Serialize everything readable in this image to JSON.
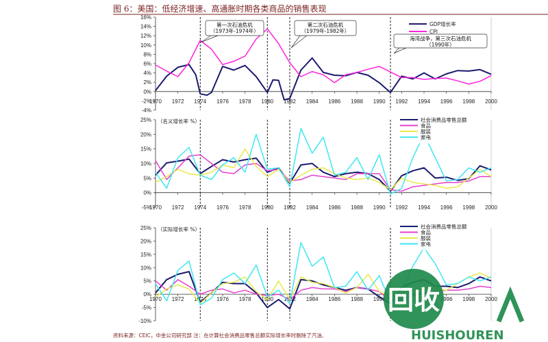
{
  "figure": {
    "title": "图 6：美国：低经济增速、高通胀时期各类商品的销售表现",
    "source": "资料来源：CEIC，中金公司研究部 注：在计算社会消费品零售总额实际增长率时剔除了汽油、",
    "watermark": {
      "text": "HUISHOUREN",
      "logo_chars": "回收"
    }
  },
  "chart_data": [
    {
      "type": "line",
      "x_ticks": [
        "1970",
        "1972",
        "1974",
        "1976",
        "1978",
        "1980",
        "1982",
        "1984",
        "1986",
        "1988",
        "1990",
        "1992",
        "1994",
        "1996",
        "1998",
        "2000"
      ],
      "y_ticks": [
        "16%",
        "14%",
        "12%",
        "10%",
        "8%",
        "6%",
        "4%",
        "2%",
        "0%",
        "-2%",
        "-4%"
      ],
      "xlim": [
        1970,
        2000
      ],
      "ylim": [
        -4,
        16
      ],
      "annotations": [
        {
          "text1": "第一次石油危机",
          "text2": "（1973年-1974年）"
        },
        {
          "text1": "第二次石油危机",
          "text2": "（1979年-1982年）"
        },
        {
          "text1": "海湾战争，第三次石油危机",
          "text2": "（1990年）"
        }
      ],
      "legend": "top-right",
      "series": [
        {
          "name": "GDP增长率",
          "color": "#1a1a6e",
          "x": [
            1970,
            1971,
            1972,
            1973,
            1973.6,
            1974,
            1974.6,
            1975,
            1976,
            1977,
            1978,
            1979,
            1980,
            1980.5,
            1981,
            1981.5,
            1982,
            1983,
            1984,
            1985,
            1986,
            1987,
            1988,
            1989,
            1990,
            1991,
            1992,
            1993,
            1994,
            1995,
            1996,
            1997,
            1998,
            1999,
            2000
          ],
          "y": [
            0.2,
            3.3,
            5.2,
            5.8,
            3.6,
            -0.5,
            -0.8,
            -0.2,
            5.4,
            4.6,
            5.6,
            3.2,
            -0.2,
            2.5,
            2.4,
            -1.8,
            -1.5,
            4.6,
            7.2,
            4.1,
            3.5,
            3.4,
            4.1,
            3.5,
            1.9,
            -0.2,
            3.3,
            2.7,
            4.0,
            2.7,
            3.8,
            4.5,
            4.4,
            4.7,
            3.7
          ]
        },
        {
          "name": "CPI",
          "color": "#ff22dd",
          "x": [
            1970,
            1971,
            1972,
            1973,
            1974,
            1975,
            1976,
            1977,
            1978,
            1979,
            1980,
            1981,
            1982,
            1983,
            1984,
            1985,
            1986,
            1987,
            1988,
            1989,
            1990,
            1991,
            1992,
            1993,
            1994,
            1995,
            1996,
            1997,
            1998,
            1999,
            2000
          ],
          "y": [
            5.7,
            4.4,
            3.2,
            6.2,
            11.0,
            9.1,
            5.8,
            6.5,
            7.6,
            11.3,
            13.5,
            10.3,
            6.2,
            3.2,
            4.3,
            3.6,
            1.9,
            3.6,
            4.1,
            4.8,
            5.4,
            4.2,
            3.0,
            3.0,
            2.6,
            2.8,
            2.9,
            2.3,
            1.6,
            2.2,
            3.4
          ]
        }
      ]
    },
    {
      "type": "line",
      "ylabel": "（名义增长率 %）",
      "x_ticks": [
        "1970",
        "1972",
        "1974",
        "1976",
        "1978",
        "1980",
        "1982",
        "1984",
        "1986",
        "1988",
        "1990",
        "1992",
        "1994",
        "1996",
        "1998",
        "2000"
      ],
      "y_ticks": [
        "25%",
        "20%",
        "15%",
        "10%",
        "5%",
        "0%",
        "-5%"
      ],
      "xlim": [
        1970,
        2000
      ],
      "ylim": [
        -5,
        25
      ],
      "legend": "top-right",
      "series": [
        {
          "name": "社会消费品零售总额",
          "color": "#1a1a6e",
          "x": [
            1970,
            1971,
            1972,
            1973,
            1974,
            1975,
            1976,
            1977,
            1978,
            1979,
            1980,
            1981,
            1982,
            1983,
            1984,
            1985,
            1986,
            1987,
            1988,
            1989,
            1990,
            1991,
            1992,
            1993,
            1994,
            1995,
            1996,
            1997,
            1998,
            1999,
            2000
          ],
          "y": [
            6.0,
            10.2,
            10.8,
            11.5,
            6.5,
            9.0,
            11.3,
            10.5,
            11.3,
            11.8,
            7.0,
            8.5,
            3.2,
            9.5,
            10.0,
            7.0,
            5.5,
            6.5,
            7.0,
            6.5,
            4.5,
            0.5,
            5.8,
            7.5,
            8.5,
            5.0,
            5.3,
            4.2,
            4.8,
            9.2,
            7.8
          ]
        },
        {
          "name": "食品",
          "color": "#e63fcf",
          "x": [
            1970,
            1971,
            1972,
            1973,
            1974,
            1975,
            1976,
            1977,
            1978,
            1979,
            1980,
            1981,
            1982,
            1983,
            1984,
            1985,
            1986,
            1987,
            1988,
            1989,
            1990,
            1991,
            1992,
            1993,
            1994,
            1995,
            1996,
            1997,
            1998,
            1999,
            2000
          ],
          "y": [
            11.0,
            4.5,
            8.5,
            12.5,
            13.0,
            10.0,
            7.0,
            6.5,
            9.5,
            10.0,
            7.5,
            8.0,
            4.0,
            4.5,
            6.0,
            5.5,
            5.0,
            4.5,
            6.5,
            6.5,
            6.5,
            1.0,
            0.5,
            2.0,
            2.5,
            3.0,
            3.5,
            3.5,
            4.0,
            5.5,
            5.5
          ]
        },
        {
          "name": "服装",
          "color": "#e9e94a",
          "x": [
            1970,
            1971,
            1972,
            1973,
            1974,
            1975,
            1976,
            1977,
            1978,
            1979,
            1980,
            1981,
            1982,
            1983,
            1984,
            1985,
            1986,
            1987,
            1988,
            1989,
            1990,
            1991,
            1992,
            1993,
            1994,
            1995,
            1996,
            1997,
            1998,
            1999,
            2000
          ],
          "y": [
            3.5,
            5.5,
            8.0,
            6.5,
            6.0,
            7.0,
            9.5,
            8.5,
            15.0,
            9.0,
            5.5,
            8.0,
            3.5,
            6.0,
            8.0,
            8.5,
            6.5,
            5.0,
            4.5,
            5.0,
            3.5,
            1.0,
            5.0,
            3.5,
            3.0,
            2.5,
            1.5,
            2.0,
            5.0,
            8.0,
            5.5
          ]
        },
        {
          "name": "家电",
          "color": "#3ee6f2",
          "x": [
            1970,
            1971,
            1972,
            1973,
            1974,
            1975,
            1976,
            1977,
            1978,
            1979,
            1980,
            1981,
            1982,
            1983,
            1984,
            1985,
            1986,
            1987,
            1988,
            1989,
            1990,
            1991,
            1992,
            1993,
            1994,
            1995,
            1996,
            1997,
            1998,
            1999,
            2000
          ],
          "y": [
            7.0,
            1.5,
            12.0,
            15.5,
            6.0,
            4.5,
            9.5,
            12.0,
            7.0,
            20.0,
            8.0,
            8.5,
            2.0,
            22.0,
            13.5,
            19.0,
            6.0,
            7.0,
            12.0,
            4.5,
            13.0,
            -0.5,
            1.5,
            12.0,
            20.0,
            12.0,
            4.0,
            4.5,
            8.5,
            7.0,
            8.5
          ]
        }
      ]
    },
    {
      "type": "line",
      "ylabel": "（实际增长率 %）",
      "x_ticks": [
        "1970",
        "1972",
        "1974",
        "1976",
        "1978",
        "1980",
        "1982",
        "1984",
        "1986",
        "1988",
        "1990",
        "1992",
        "1994",
        "1996",
        "1998",
        "2000"
      ],
      "y_ticks": [
        "25%",
        "20%",
        "15%",
        "10%",
        "5%",
        "0%",
        "-5%",
        "-10%"
      ],
      "xlim": [
        1970,
        2000
      ],
      "ylim": [
        -10,
        25
      ],
      "legend": "top-right",
      "series": [
        {
          "name": "社会消费品零售总额",
          "color": "#1a1a6e",
          "x": [
            1970,
            1971,
            1972,
            1973,
            1974,
            1975,
            1976,
            1977,
            1978,
            1979,
            1980,
            1981,
            1982,
            1983,
            1984,
            1985,
            1986,
            1987,
            1988,
            1989,
            1990,
            1991,
            1992,
            1993,
            1994,
            1995,
            1996,
            1997,
            1998,
            1999,
            2000
          ],
          "y": [
            0.5,
            5.5,
            7.5,
            8.5,
            -3.0,
            0.5,
            4.5,
            4.0,
            4.0,
            0.5,
            -5.0,
            -2.0,
            -5.5,
            5.5,
            5.0,
            3.5,
            2.5,
            1.5,
            2.5,
            2.0,
            -1.0,
            -3.5,
            2.5,
            4.5,
            5.5,
            3.0,
            3.0,
            2.5,
            4.0,
            6.5,
            5.0
          ]
        },
        {
          "name": "食品",
          "color": "#e63fcf",
          "x": [
            1970,
            1971,
            1972,
            1973,
            1974,
            1975,
            1976,
            1977,
            1978,
            1979,
            1980,
            1981,
            1982,
            1983,
            1984,
            1985,
            1986,
            1987,
            1988,
            1989,
            1990,
            1991,
            1992,
            1993,
            1994,
            1995,
            1996,
            1997,
            1998,
            1999,
            2000
          ],
          "y": [
            5.0,
            1.5,
            5.5,
            3.0,
            0.0,
            1.5,
            2.0,
            0.5,
            1.5,
            0.0,
            -0.5,
            0.0,
            -2.0,
            1.5,
            2.5,
            2.0,
            2.0,
            1.0,
            2.5,
            2.0,
            1.0,
            -2.5,
            -2.0,
            -0.5,
            0.5,
            1.0,
            1.5,
            1.5,
            2.0,
            3.0,
            2.5
          ]
        },
        {
          "name": "服装",
          "color": "#e9e94a",
          "x": [
            1970,
            1971,
            1972,
            1973,
            1974,
            1975,
            1976,
            1977,
            1978,
            1979,
            1980,
            1981,
            1982,
            1983,
            1984,
            1985,
            1986,
            1987,
            1988,
            1989,
            1990,
            1991,
            1992,
            1993,
            1994,
            1995,
            1996,
            1997,
            1998,
            1999,
            2000
          ],
          "y": [
            -1.0,
            2.0,
            3.5,
            2.0,
            -3.5,
            0.5,
            4.0,
            4.5,
            6.5,
            1.0,
            -2.0,
            5.0,
            -2.0,
            6.5,
            4.5,
            4.0,
            2.5,
            0.5,
            2.5,
            7.5,
            1.0,
            -1.0,
            1.5,
            1.0,
            2.0,
            2.0,
            1.5,
            4.0,
            6.5,
            8.0,
            6.0
          ]
        },
        {
          "name": "家电",
          "color": "#3ee6f2",
          "x": [
            1970,
            1971,
            1972,
            1973,
            1974,
            1975,
            1976,
            1977,
            1978,
            1979,
            1980,
            1981,
            1982,
            1983,
            1984,
            1985,
            1986,
            1987,
            1988,
            1989,
            1990,
            1991,
            1992,
            1993,
            1994,
            1995,
            1996,
            1997,
            1998,
            1999,
            2000
          ],
          "y": [
            4.0,
            -2.5,
            9.0,
            12.5,
            -4.0,
            -1.5,
            5.5,
            8.0,
            4.0,
            11.0,
            -1.0,
            1.5,
            -3.5,
            19.5,
            10.5,
            14.0,
            2.5,
            3.0,
            8.5,
            1.5,
            7.0,
            -3.0,
            1.5,
            10.5,
            17.5,
            11.5,
            3.5,
            4.0,
            6.5,
            5.0,
            6.5
          ]
        }
      ]
    }
  ]
}
